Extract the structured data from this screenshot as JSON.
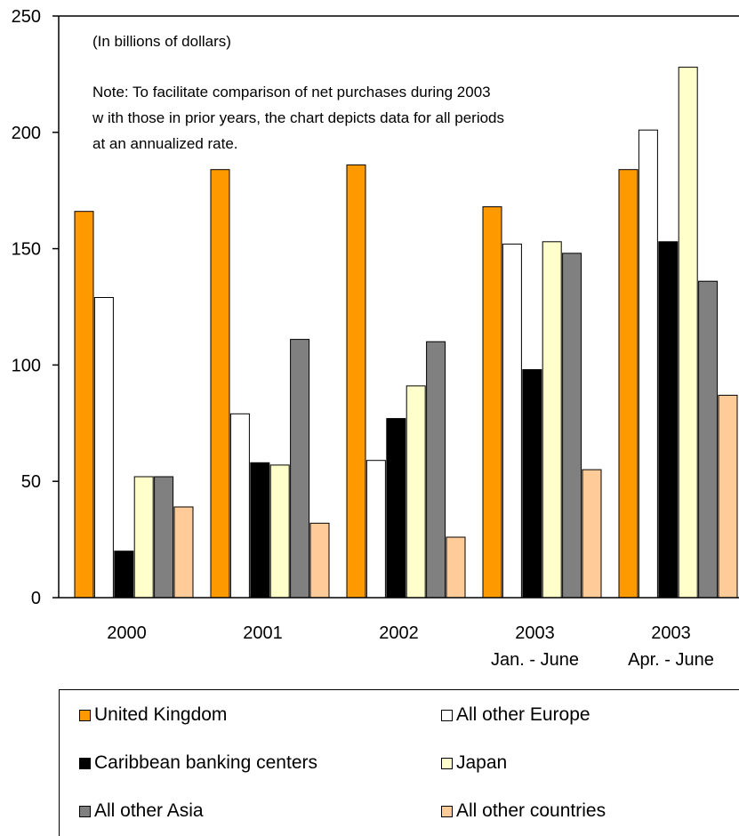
{
  "chart_data": {
    "type": "bar",
    "subtitle": "(In billions of dollars)",
    "note_lines": [
      "Note: To facilitate comparison of net purchases during 2003",
      "w ith those in prior years, the chart depicts data for all periods",
      "at an annualized rate."
    ],
    "categories": [
      [
        "2000"
      ],
      [
        "2001"
      ],
      [
        "2002"
      ],
      [
        "2003",
        "Jan. - June"
      ],
      [
        "2003",
        "Apr. - June"
      ]
    ],
    "ylim": [
      0,
      250
    ],
    "yticks": [
      0,
      50,
      100,
      150,
      200,
      250
    ],
    "grid": false,
    "legend_position": "bottom",
    "series": [
      {
        "name": "United Kingdom",
        "color": "#ff9900",
        "values": [
          166,
          184,
          186,
          168,
          184
        ]
      },
      {
        "name": "All other Europe",
        "color": "#ffffff",
        "values": [
          129,
          79,
          59,
          152,
          201
        ]
      },
      {
        "name": "Caribbean banking centers",
        "color": "#000000",
        "values": [
          20,
          58,
          77,
          98,
          153
        ]
      },
      {
        "name": "Japan",
        "color": "#ffffcc",
        "values": [
          52,
          57,
          91,
          153,
          228
        ]
      },
      {
        "name": "All other Asia",
        "color": "#808080",
        "values": [
          52,
          111,
          110,
          148,
          136
        ]
      },
      {
        "name": "All other countries",
        "color": "#ffcc99",
        "values": [
          39,
          32,
          26,
          55,
          87
        ]
      }
    ]
  }
}
